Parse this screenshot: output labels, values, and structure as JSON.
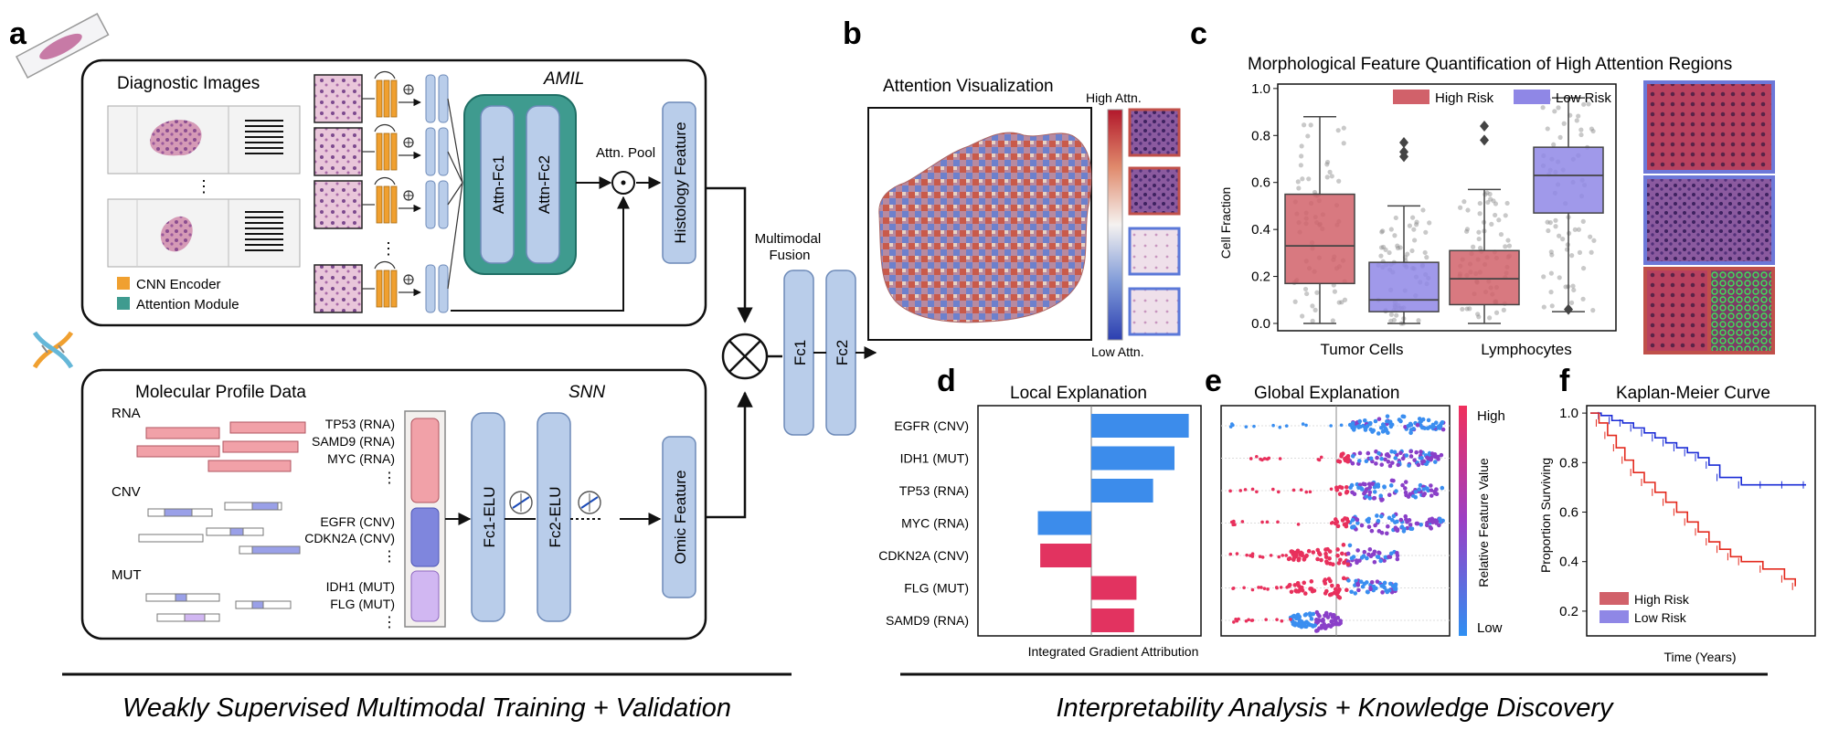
{
  "panel_letters": {
    "a": "a",
    "b": "b",
    "c": "c",
    "d": "d",
    "e": "e",
    "f": "f"
  },
  "captions": {
    "left": "Weakly Supervised Multimodal Training + Validation",
    "right": "Interpretability Analysis + Knowledge Discovery"
  },
  "panel_a": {
    "diagnostic_images": "Diagnostic Images",
    "amil": "AMIL",
    "attn_fc1": "Attn-Fc1",
    "attn_fc2": "Attn-Fc2",
    "attn_pool": "Attn. Pool",
    "histology_feature": "Histology Feature",
    "legend_cnn": "CNN Encoder",
    "legend_attention": "Attention Module",
    "legend_colors": {
      "cnn": "#f0a030",
      "attention": "#3f9b8f"
    },
    "ellipsis": "⋮",
    "molecular_profile": "Molecular Profile Data",
    "snn": "SNN",
    "rna": "RNA",
    "cnv": "CNV",
    "mut": "MUT",
    "genes": [
      "TP53 (RNA)",
      "SAMD9 (RNA)",
      "MYC (RNA)",
      "EGFR (CNV)",
      "CDKN2A (CNV)",
      "IDH1 (MUT)",
      "FLG (MUT)"
    ],
    "fc1_elu": "Fc1-ELU",
    "fc2_elu": "Fc2-ELU",
    "omic_feature": "Omic Feature",
    "multimodal_fusion": "Multimodal\nFusion",
    "fc1": "Fc1",
    "fc2": "Fc2"
  },
  "panel_b": {
    "title": "Attention Visualization",
    "high": "High Attn.",
    "low": "Low Attn."
  },
  "panel_c": {
    "title": "Morphological Feature Quantification of High Attention Regions",
    "chart_data": {
      "type": "box",
      "ylabel": "Cell Fraction",
      "ylim": [
        0,
        1.05
      ],
      "yticks": [
        "0.0",
        "0.2",
        "0.4",
        "0.6",
        "0.8",
        "1.0"
      ],
      "categories": [
        "Tumor Cells",
        "Lymphocytes"
      ],
      "series": [
        {
          "name": "High Risk",
          "color": "#d1616a",
          "boxes": [
            {
              "min": 0.0,
              "q1": 0.17,
              "median": 0.33,
              "q3": 0.55,
              "max": 0.88,
              "outliers": []
            },
            {
              "min": 0.0,
              "q1": 0.08,
              "median": 0.19,
              "q3": 0.31,
              "max": 0.57,
              "outliers": [
                0.84,
                0.78
              ]
            }
          ]
        },
        {
          "name": "Low Risk",
          "color": "#8f87e6",
          "boxes": [
            {
              "min": 0.0,
              "q1": 0.05,
              "median": 0.1,
              "q3": 0.26,
              "max": 0.5,
              "outliers": [
                0.77,
                0.73,
                0.71
              ]
            },
            {
              "min": 0.05,
              "q1": 0.47,
              "median": 0.63,
              "q3": 0.75,
              "max": 0.96,
              "outliers": [
                0.06
              ]
            }
          ]
        }
      ],
      "legend_position": "top"
    }
  },
  "panel_d": {
    "title": "Local Explanation",
    "xlabel": "Integrated Gradient Attribution",
    "chart_data": {
      "type": "bar",
      "orientation": "horizontal",
      "categories": [
        "EGFR (CNV)",
        "IDH1 (MUT)",
        "TP53 (RNA)",
        "MYC (RNA)",
        "CDKN2A (CNV)",
        "FLG (MUT)",
        "SAMD9 (RNA)"
      ],
      "values": [
        0.82,
        0.7,
        0.52,
        -0.45,
        -0.43,
        0.38,
        0.36
      ],
      "colors": {
        "positive_top": "#3c8ceb",
        "negative_top": "#3c8ceb",
        "positive_bottom": "#e23360",
        "negative_bottom": "#e23360"
      }
    }
  },
  "panel_e": {
    "title": "Global Explanation",
    "colorbar_high": "High",
    "colorbar_low": "Low",
    "colorbar_label": "Relative Feature Value",
    "chart_data": {
      "type": "scatter",
      "rows": [
        "EGFR (CNV)",
        "IDH1 (MUT)",
        "TP53 (RNA)",
        "MYC (RNA)",
        "CDKN2A (CNV)",
        "FLG (MUT)",
        "SAMD9 (RNA)"
      ],
      "colors": {
        "high": "#e8305c",
        "mid": "#8a3fc8",
        "low": "#3a8ef0"
      }
    }
  },
  "panel_f": {
    "title": "Kaplan-Meier Curve",
    "ylabel": "Proportion Surviving",
    "xlabel": "Time (Years)",
    "chart_data": {
      "type": "line",
      "yticks": [
        "0.2",
        "0.4",
        "0.6",
        "0.8",
        "1.0"
      ],
      "ylim": [
        0.1,
        1.03
      ],
      "series": [
        {
          "name": "Low Risk",
          "color": "#1a2bd6",
          "x": [
            0,
            0.05,
            0.1,
            0.15,
            0.2,
            0.25,
            0.3,
            0.35,
            0.4,
            0.45,
            0.5,
            0.55,
            0.6,
            0.7,
            0.8,
            0.9,
            1.0
          ],
          "y": [
            1.0,
            0.99,
            0.97,
            0.96,
            0.94,
            0.92,
            0.9,
            0.88,
            0.86,
            0.84,
            0.82,
            0.79,
            0.74,
            0.71,
            0.71,
            0.71,
            0.71
          ]
        },
        {
          "name": "High Risk",
          "color": "#e32a1e",
          "x": [
            0,
            0.04,
            0.08,
            0.12,
            0.16,
            0.2,
            0.25,
            0.3,
            0.35,
            0.4,
            0.45,
            0.5,
            0.55,
            0.6,
            0.65,
            0.7,
            0.8,
            0.9,
            0.95
          ],
          "y": [
            1.0,
            0.96,
            0.91,
            0.86,
            0.81,
            0.76,
            0.72,
            0.68,
            0.64,
            0.6,
            0.56,
            0.52,
            0.48,
            0.45,
            0.42,
            0.4,
            0.37,
            0.33,
            0.3
          ]
        }
      ],
      "legend": [
        "High Risk",
        "Low Risk"
      ],
      "legend_position": "bottom-left"
    }
  }
}
